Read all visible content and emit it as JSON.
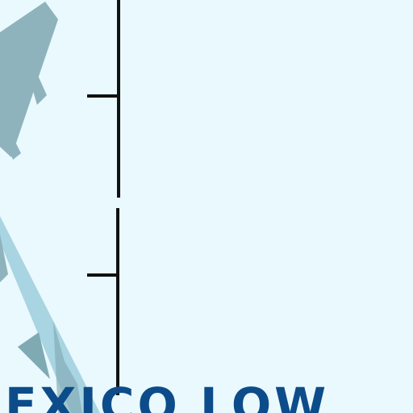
{
  "caption": {
    "text": "EXICO LOW"
  },
  "colors": {
    "background": "#e9f9fd",
    "arrow_upper": "#8fb3bc",
    "arrow_lower": "#a9d4e2",
    "arrowhead": "#7faab3",
    "axis": "#111111",
    "caption_text": "#0d4c8a"
  },
  "icons": {
    "upper_arrow": "weather-flow-arrow",
    "lower_arrow": "weather-flow-arrow"
  }
}
